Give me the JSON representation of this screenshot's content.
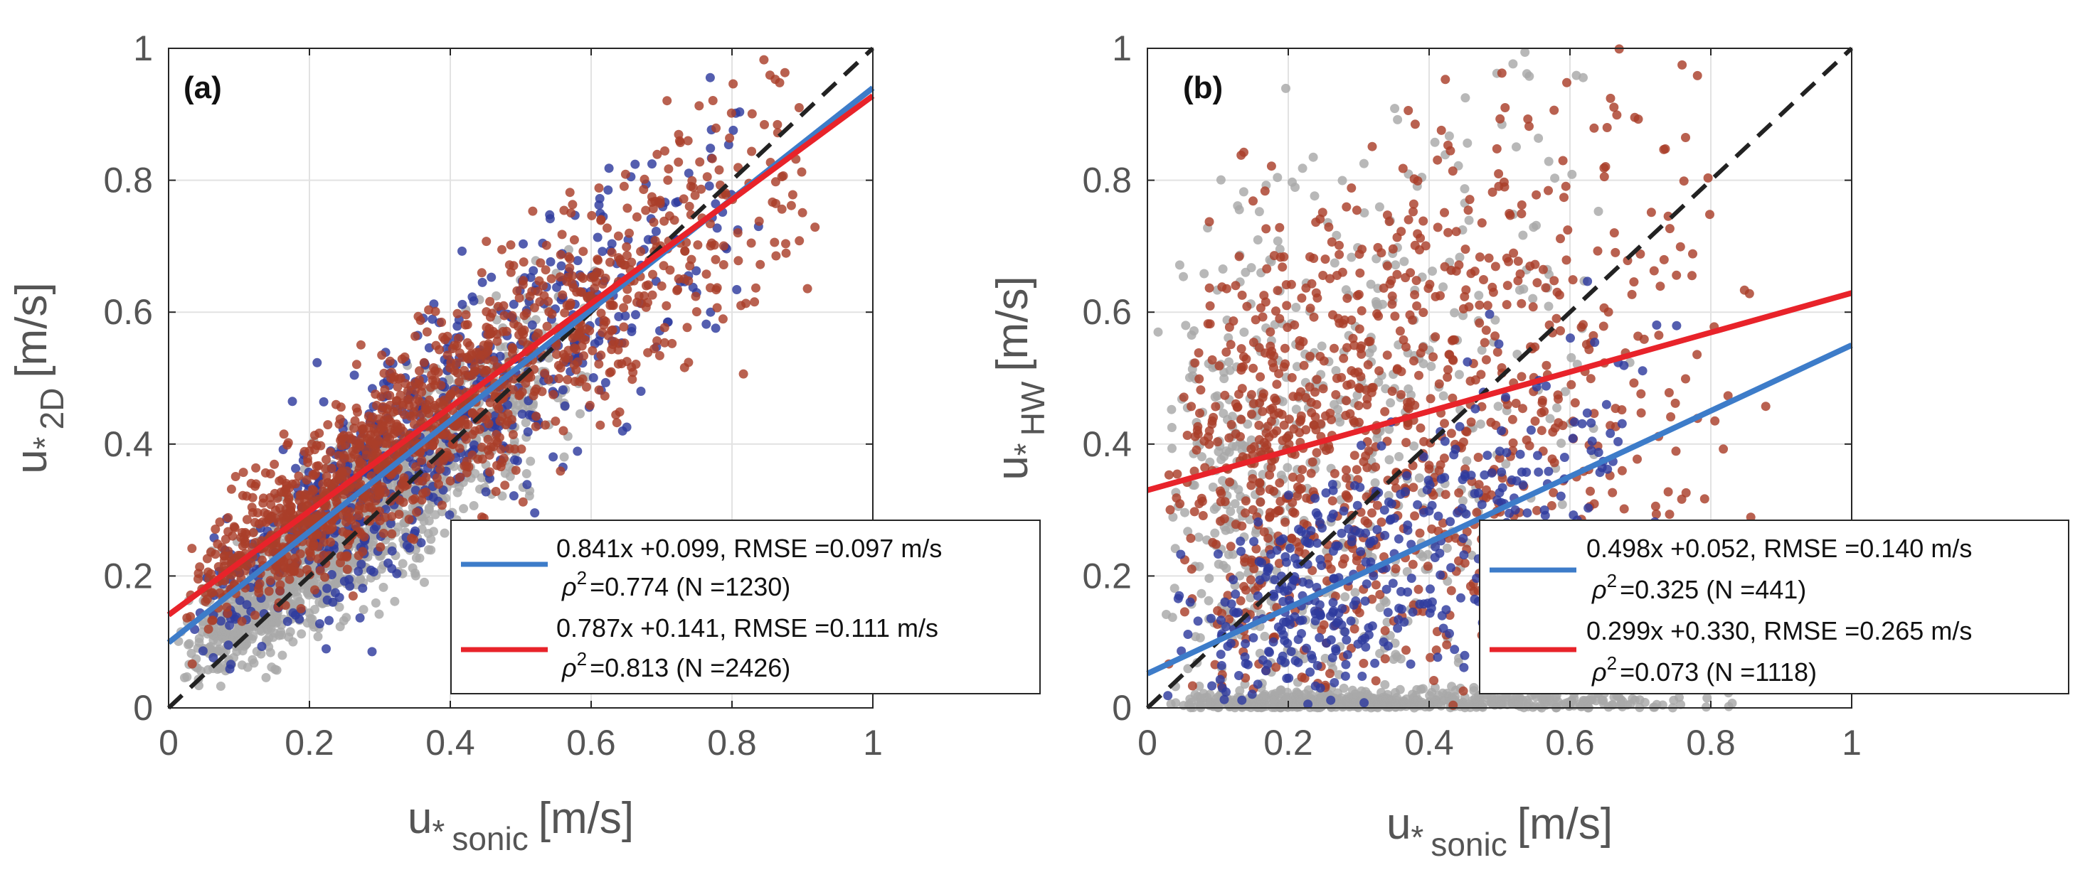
{
  "colors": {
    "grey_points": "#a8a8a8",
    "blue_points": "#2e3a9e",
    "red_points": "#a93e2a",
    "blue_fit": "#3d7cc9",
    "red_fit": "#e8232a",
    "one_to_one": "#222222",
    "grid": "#e2e2e2",
    "text": "#555555"
  },
  "chart_data": [
    {
      "type": "scatter",
      "panel_label": "(a)",
      "xlabel_main": "u",
      "xlabel_star": "*",
      "xlabel_sub": "sonic",
      "xlabel_unit": "[m/s]",
      "ylabel_main": "u",
      "ylabel_star": "*",
      "ylabel_sub": "2D",
      "ylabel_unit": "[m/s]",
      "xlim": [
        0,
        1
      ],
      "ylim": [
        0,
        1
      ],
      "xticks": [
        "0",
        "0.2",
        "0.4",
        "0.6",
        "0.8",
        "1"
      ],
      "yticks": [
        "0",
        "0.2",
        "0.4",
        "0.6",
        "0.8",
        "1"
      ],
      "grid": true,
      "one_to_one_line": true,
      "scatter_clouds": [
        {
          "color_key": "grey_points",
          "n": 1500,
          "x_range": [
            0.01,
            0.62
          ],
          "x_mode": 0.15,
          "slope": 0.82,
          "intercept": 0.06,
          "spread": 0.065
        },
        {
          "color_key": "blue_points",
          "n": 650,
          "x_range": [
            0.02,
            0.88
          ],
          "x_mode": 0.25,
          "slope": 0.841,
          "intercept": 0.099,
          "spread": 0.085
        },
        {
          "color_key": "red_points",
          "n": 1300,
          "x_range": [
            0.02,
            0.95
          ],
          "x_mode": 0.2,
          "slope": 0.787,
          "intercept": 0.141,
          "spread": 0.07
        }
      ],
      "fits": [
        {
          "color_key": "blue_fit",
          "slope": 0.841,
          "intercept": 0.099,
          "equation": "0.841x +0.099, RMSE =0.097 m/s",
          "stats": "=0.774 (N =1230)"
        },
        {
          "color_key": "red_fit",
          "slope": 0.787,
          "intercept": 0.141,
          "equation": "0.787x +0.141, RMSE =0.111 m/s",
          "stats": "=0.813 (N =2426)"
        }
      ],
      "legend_placement": "bottom-right"
    },
    {
      "type": "scatter",
      "panel_label": "(b)",
      "xlabel_main": "u",
      "xlabel_star": "*",
      "xlabel_sub": "sonic",
      "xlabel_unit": "[m/s]",
      "ylabel_main": "u",
      "ylabel_star": "*",
      "ylabel_sub": "HW",
      "ylabel_unit": "[m/s]",
      "xlim": [
        0,
        1
      ],
      "ylim": [
        0,
        1
      ],
      "xticks": [
        "0",
        "0.2",
        "0.4",
        "0.6",
        "0.8",
        "1"
      ],
      "yticks": [
        "0",
        "0.2",
        "0.4",
        "0.6",
        "0.8",
        "1"
      ],
      "grid": true,
      "one_to_one_line": true,
      "scatter_clouds": [
        {
          "color_key": "grey_points",
          "n": 520,
          "x_range": [
            0.01,
            0.85
          ],
          "x_mode": 0.2,
          "slope": 0.0,
          "intercept": 0.0,
          "spread": 0.012,
          "floor": true
        },
        {
          "color_key": "grey_points",
          "n": 650,
          "x_range": [
            0.01,
            0.7
          ],
          "x_mode": 0.12,
          "slope": 0.3,
          "intercept": 0.28,
          "spread": 0.3
        },
        {
          "color_key": "red_points",
          "n": 1000,
          "x_range": [
            0.02,
            0.88
          ],
          "x_mode": 0.15,
          "slope": 0.299,
          "intercept": 0.33,
          "spread": 0.22
        },
        {
          "color_key": "blue_points",
          "n": 420,
          "x_range": [
            0.02,
            0.78
          ],
          "x_mode": 0.2,
          "slope": 0.498,
          "intercept": 0.052,
          "spread": 0.1
        }
      ],
      "fits": [
        {
          "color_key": "blue_fit",
          "slope": 0.498,
          "intercept": 0.052,
          "equation": "0.498x +0.052, RMSE =0.140 m/s",
          "stats": "=0.325 (N =441)"
        },
        {
          "color_key": "red_fit",
          "slope": 0.299,
          "intercept": 0.33,
          "equation": "0.299x +0.330, RMSE =0.265 m/s",
          "stats": "=0.073 (N =1118)"
        }
      ],
      "legend_placement": "bottom-right"
    }
  ],
  "rho_symbol": "ρ",
  "rho_exp": "2"
}
